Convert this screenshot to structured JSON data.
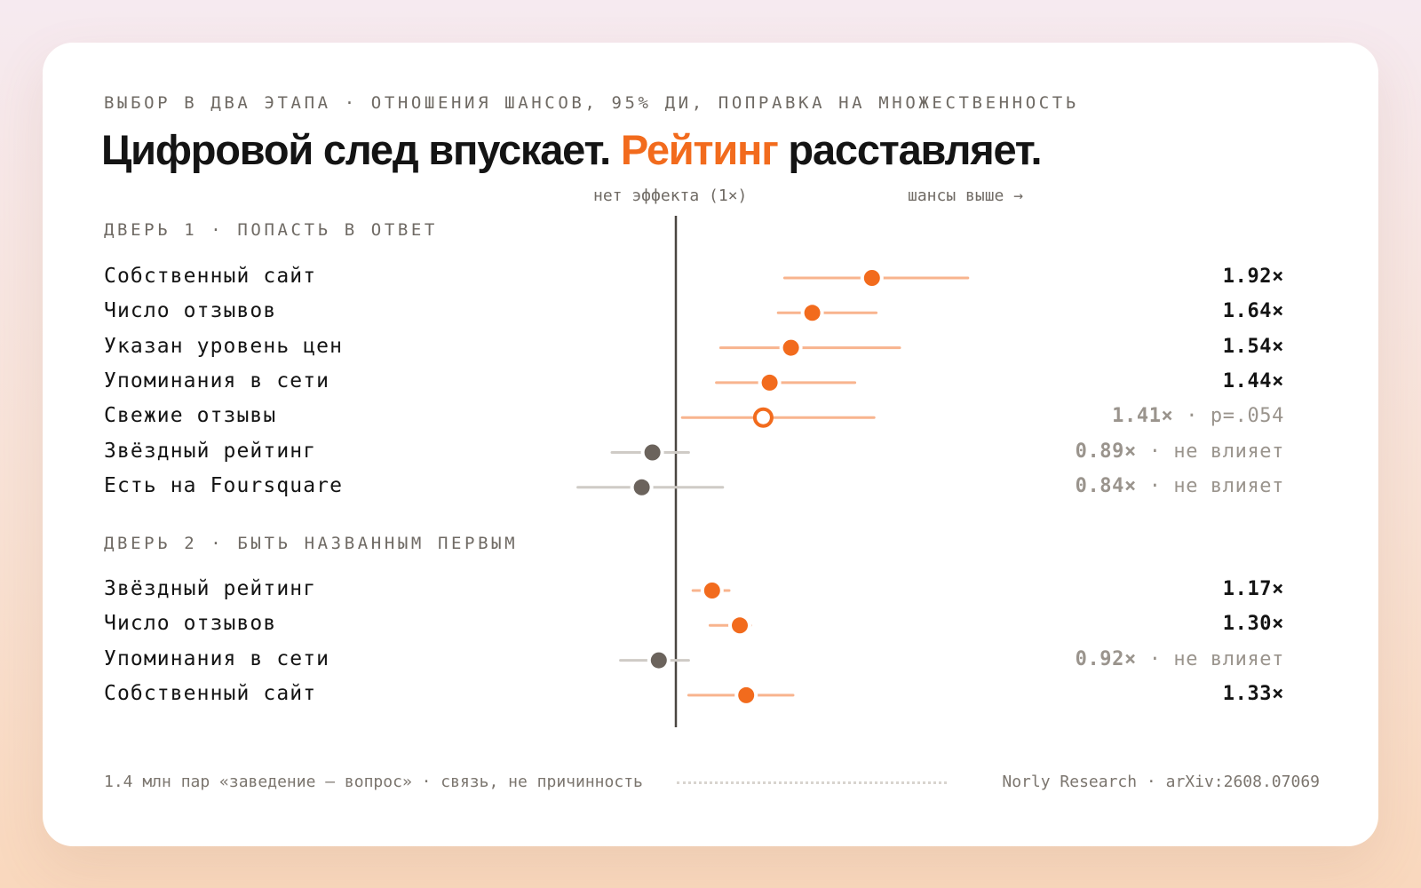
{
  "header": {
    "eyebrow": "ВЫБОР В ДВА ЭТАПА · ОТНОШЕНИЯ ШАНСОВ, 95% ДИ, ПОПРАВКА НА МНОЖЕСТВЕННОСТЬ",
    "title_part1": "Цифровой след впускает. ",
    "title_accent": "Рейтинг",
    "title_part2": " расставляет."
  },
  "axis": {
    "no_effect_label": "нет эффекта (1×)",
    "higher_label": "шансы выше →"
  },
  "colors": {
    "accent": "#f26b1d",
    "accent_light": "#f8b48e",
    "muted_point": "#6b635c",
    "muted_line": "#cfcbc6",
    "reference_line": "#4a4641"
  },
  "chart_data": {
    "type": "forest",
    "reference_value": 1,
    "sections": [
      {
        "label": "ДВЕРЬ 1 · ПОПАСТЬ В ОТВЕТ",
        "rows": [
          {
            "label": "Собственный сайт",
            "or": 1.92,
            "ci": [
              1.51,
              2.37
            ],
            "status": "significant",
            "value_text": "1.92×",
            "note": ""
          },
          {
            "label": "Число отзывов",
            "or": 1.64,
            "ci": [
              1.48,
              1.94
            ],
            "status": "significant",
            "value_text": "1.64×",
            "note": ""
          },
          {
            "label": "Указан уровень цен",
            "or": 1.54,
            "ci": [
              1.21,
              2.05
            ],
            "status": "significant",
            "value_text": "1.54×",
            "note": ""
          },
          {
            "label": "Упоминания в сети",
            "or": 1.44,
            "ci": [
              1.19,
              1.84
            ],
            "status": "significant",
            "value_text": "1.44×",
            "note": ""
          },
          {
            "label": "Свежие отзывы",
            "or": 1.41,
            "ci": [
              1.03,
              1.93
            ],
            "status": "borderline",
            "value_text": "1.41×",
            "note": " · p=.054"
          },
          {
            "label": "Звёздный рейтинг",
            "or": 0.89,
            "ci": [
              0.7,
              1.06
            ],
            "status": "ns",
            "value_text": "0.89×",
            "note": " · не влияет"
          },
          {
            "label": "Есть на Foursquare",
            "or": 0.84,
            "ci": [
              0.54,
              1.22
            ],
            "status": "ns",
            "value_text": "0.84×",
            "note": " · не влияет"
          }
        ]
      },
      {
        "label": "ДВЕРЬ 2 · БЫТЬ НАЗВАННЫМ ПЕРВЫМ",
        "rows": [
          {
            "label": "Звёздный рейтинг",
            "or": 1.17,
            "ci": [
              1.08,
              1.25
            ],
            "status": "significant",
            "value_text": "1.17×",
            "note": ""
          },
          {
            "label": "Число отзывов",
            "or": 1.3,
            "ci": [
              1.16,
              1.35
            ],
            "status": "significant",
            "value_text": "1.30×",
            "note": ""
          },
          {
            "label": "Упоминания в сети",
            "or": 0.92,
            "ci": [
              0.74,
              1.06
            ],
            "status": "ns",
            "value_text": "0.92×",
            "note": " · не влияет"
          },
          {
            "label": "Собственный сайт",
            "or": 1.33,
            "ci": [
              1.06,
              1.55
            ],
            "status": "significant",
            "value_text": "1.33×",
            "note": ""
          }
        ]
      }
    ]
  },
  "footer": {
    "left": "1.4 млн пар «заведение — вопрос» · связь, не причинность",
    "right": "Norly Research · arXiv:2608.07069"
  }
}
